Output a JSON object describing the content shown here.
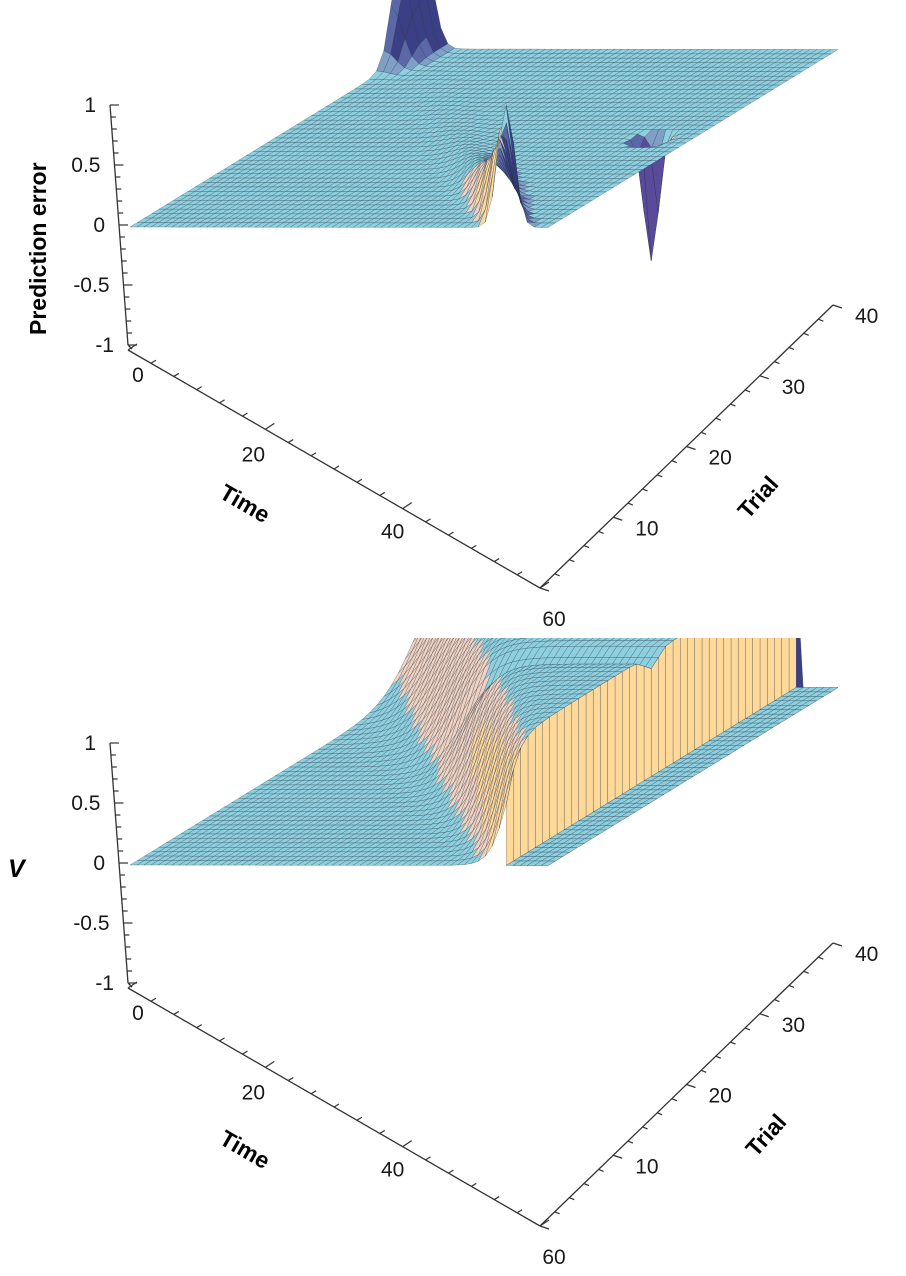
{
  "chart_data": [
    {
      "type": "surface",
      "zlabel": "Prediction error",
      "xlabel": "Time",
      "ylabel": "Trial",
      "x_ticks": [
        "0",
        "20",
        "40",
        "60"
      ],
      "y_ticks": [
        "10",
        "20",
        "30",
        "40"
      ],
      "z_ticks": [
        "1",
        "0.5",
        "0",
        "-0.5",
        "-1"
      ],
      "xlim": [
        0,
        60
      ],
      "ylim": [
        0,
        40
      ],
      "zlim": [
        -1,
        1
      ],
      "surface_summary": {
        "baseline": 0,
        "reward_time_peak": {
          "time": 54,
          "trial": 1,
          "value": 1.0
        },
        "learned_cue_peak": {
          "time": 0,
          "trial": 40,
          "value": 1.0
        },
        "omission_dip": {
          "time": 55,
          "trial": 20,
          "value": -1.0
        }
      }
    },
    {
      "type": "surface",
      "zlabel": "V",
      "xlabel": "Time",
      "ylabel": "Trial",
      "x_ticks": [
        "0",
        "20",
        "40",
        "60"
      ],
      "y_ticks": [
        "10",
        "20",
        "30",
        "40"
      ],
      "z_ticks": [
        "1",
        "0.5",
        "0",
        "-0.5",
        "-1"
      ],
      "xlim": [
        0,
        60
      ],
      "ylim": [
        0,
        40
      ],
      "zlim": [
        -1,
        1
      ],
      "surface_summary": {
        "value_before_reward": 1.0,
        "value_after_reward": 0,
        "reward_time": 54,
        "omission_trial": 20
      }
    }
  ]
}
